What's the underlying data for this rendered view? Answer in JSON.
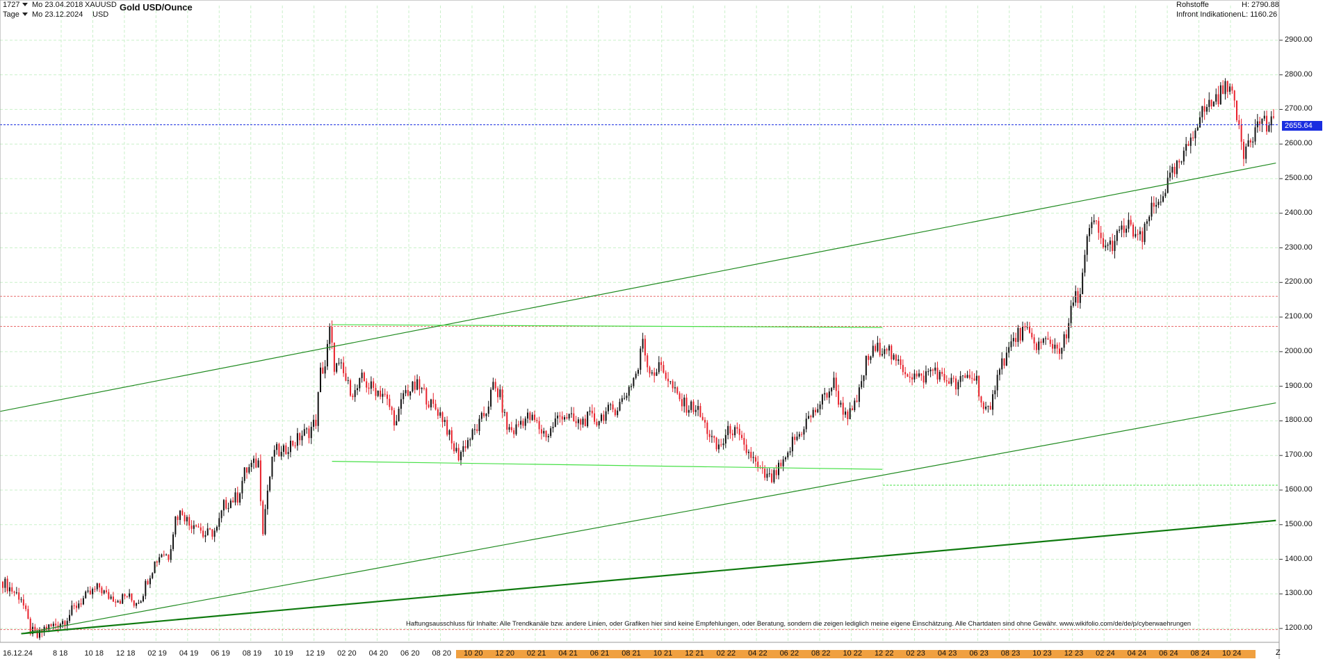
{
  "header": {
    "count": "1727",
    "date_start": "Mo 23.04.2018",
    "symbol": "XAUUSD",
    "timeframe": "Tage",
    "date_end": "Mo 23.12.2024",
    "currency": "USD",
    "title": "Gold USD/Ounce",
    "category": "Rohstoffe",
    "provider": "Infront Indikationen",
    "high_label": "H: 2790.88",
    "low_label": "L: 1160.26"
  },
  "price_tag": "2655.64",
  "disclaimer": "Haftungsausschluss für Inhalte: Alle Trendkanäle bzw. andere Linien, oder Grafiken hier sind keine Empfehlungen, oder Beratung, sondern die zeigen lediglich meine eigene Einschätzung. Alle Chartdaten sind ohne Gewähr.  www.wikifolio.com/de/de/p/cyberwaehrungen",
  "z_label": "Z",
  "colors": {
    "up": "#111111",
    "down": "#e8202a",
    "grid": "#c9f0c9",
    "trend": "#1f8a1f",
    "range": "#45e045",
    "blue_dash": "#1a2ee0",
    "red_dash": "#e86a6a",
    "orange_band": "#f0a040"
  },
  "chart_data": {
    "type": "candlestick",
    "title": "Gold USD/Ounce",
    "ylim": [
      1160,
      2960
    ],
    "y_ticks": [
      "2900.00",
      "2800.00",
      "2700.00",
      "2600.00",
      "2500.00",
      "2400.00",
      "2300.00",
      "2200.00",
      "2100.00",
      "2000.00",
      "1900.00",
      "1800.00",
      "1700.00",
      "1600.00",
      "1500.00",
      "1400.00",
      "1300.00",
      "1200.00"
    ],
    "x_ticks": [
      "16.12.24",
      "8 18",
      "10 18",
      "12 18",
      "02 19",
      "04 19",
      "06 19",
      "08 19",
      "10 19",
      "12 19",
      "02 20",
      "04 20",
      "06 20",
      "08 20",
      "10 20",
      "12 20",
      "02 21",
      "04 21",
      "06 21",
      "08 21",
      "10 21",
      "12 21",
      "02 22",
      "04 22",
      "06 22",
      "08 22",
      "10 22",
      "12 22",
      "02 23",
      "04 23",
      "06 23",
      "08 23",
      "10 23",
      "12 23",
      "02 24",
      "04 24",
      "06 24",
      "08 24",
      "10 24"
    ],
    "last": 2655.64,
    "high": 2790.88,
    "low": 1160.26,
    "path": [
      [
        0,
        1335
      ],
      [
        5,
        1305
      ],
      [
        8,
        1290
      ],
      [
        10,
        1240
      ],
      [
        12,
        1195
      ],
      [
        15,
        1175
      ],
      [
        18,
        1200
      ],
      [
        21,
        1205
      ],
      [
        24,
        1215
      ],
      [
        27,
        1225
      ],
      [
        30,
        1250
      ],
      [
        33,
        1275
      ],
      [
        36,
        1290
      ],
      [
        39,
        1305
      ],
      [
        42,
        1320
      ],
      [
        45,
        1295
      ],
      [
        48,
        1290
      ],
      [
        51,
        1285
      ],
      [
        54,
        1295
      ],
      [
        57,
        1275
      ],
      [
        60,
        1290
      ],
      [
        63,
        1345
      ],
      [
        66,
        1390
      ],
      [
        69,
        1420
      ],
      [
        72,
        1410
      ],
      [
        75,
        1520
      ],
      [
        78,
        1540
      ],
      [
        81,
        1500
      ],
      [
        84,
        1510
      ],
      [
        87,
        1470
      ],
      [
        90,
        1475
      ],
      [
        93,
        1485
      ],
      [
        96,
        1555
      ],
      [
        99,
        1570
      ],
      [
        102,
        1580
      ],
      [
        105,
        1650
      ],
      [
        108,
        1670
      ],
      [
        111,
        1680
      ],
      [
        113,
        1490
      ],
      [
        115,
        1600
      ],
      [
        118,
        1720
      ],
      [
        121,
        1700
      ],
      [
        124,
        1730
      ],
      [
        127,
        1740
      ],
      [
        130,
        1760
      ],
      [
        133,
        1770
      ],
      [
        136,
        1800
      ],
      [
        138,
        1940
      ],
      [
        140,
        1960
      ],
      [
        142,
        2060
      ],
      [
        144,
        1960
      ],
      [
        147,
        1950
      ],
      [
        150,
        1900
      ],
      [
        153,
        1880
      ],
      [
        156,
        1920
      ],
      [
        159,
        1900
      ],
      [
        162,
        1890
      ],
      [
        165,
        1880
      ],
      [
        168,
        1840
      ],
      [
        171,
        1790
      ],
      [
        174,
        1880
      ],
      [
        177,
        1890
      ],
      [
        180,
        1900
      ],
      [
        183,
        1880
      ],
      [
        186,
        1845
      ],
      [
        189,
        1830
      ],
      [
        192,
        1800
      ],
      [
        195,
        1730
      ],
      [
        198,
        1700
      ],
      [
        201,
        1735
      ],
      [
        204,
        1760
      ],
      [
        207,
        1790
      ],
      [
        210,
        1830
      ],
      [
        213,
        1900
      ],
      [
        216,
        1870
      ],
      [
        219,
        1780
      ],
      [
        222,
        1770
      ],
      [
        225,
        1800
      ],
      [
        228,
        1810
      ],
      [
        231,
        1800
      ],
      [
        234,
        1770
      ],
      [
        237,
        1760
      ],
      [
        240,
        1800
      ],
      [
        243,
        1820
      ],
      [
        246,
        1810
      ],
      [
        249,
        1790
      ],
      [
        252,
        1800
      ],
      [
        255,
        1810
      ],
      [
        258,
        1800
      ],
      [
        261,
        1820
      ],
      [
        264,
        1830
      ],
      [
        267,
        1840
      ],
      [
        270,
        1870
      ],
      [
        273,
        1910
      ],
      [
        276,
        1950
      ],
      [
        278,
        2040
      ],
      [
        280,
        1960
      ],
      [
        283,
        1940
      ],
      [
        286,
        1960
      ],
      [
        289,
        1920
      ],
      [
        292,
        1880
      ],
      [
        295,
        1850
      ],
      [
        298,
        1840
      ],
      [
        301,
        1840
      ],
      [
        304,
        1800
      ],
      [
        307,
        1760
      ],
      [
        310,
        1720
      ],
      [
        313,
        1740
      ],
      [
        316,
        1780
      ],
      [
        319,
        1760
      ],
      [
        322,
        1720
      ],
      [
        325,
        1700
      ],
      [
        328,
        1660
      ],
      [
        331,
        1640
      ],
      [
        334,
        1630
      ],
      [
        337,
        1660
      ],
      [
        340,
        1680
      ],
      [
        343,
        1740
      ],
      [
        346,
        1760
      ],
      [
        349,
        1800
      ],
      [
        352,
        1820
      ],
      [
        355,
        1850
      ],
      [
        358,
        1880
      ],
      [
        361,
        1910
      ],
      [
        364,
        1840
      ],
      [
        367,
        1820
      ],
      [
        369,
        1820
      ],
      [
        372,
        1880
      ],
      [
        375,
        1970
      ],
      [
        378,
        2000
      ],
      [
        381,
        2010
      ],
      [
        384,
        2020
      ],
      [
        387,
        1970
      ],
      [
        390,
        1960
      ],
      [
        393,
        1940
      ],
      [
        396,
        1930
      ],
      [
        399,
        1920
      ],
      [
        402,
        1940
      ],
      [
        405,
        1950
      ],
      [
        408,
        1920
      ],
      [
        411,
        1920
      ],
      [
        414,
        1900
      ],
      [
        417,
        1920
      ],
      [
        420,
        1930
      ],
      [
        423,
        1920
      ],
      [
        426,
        1830
      ],
      [
        429,
        1820
      ],
      [
        432,
        1950
      ],
      [
        435,
        1980
      ],
      [
        438,
        2020
      ],
      [
        441,
        2050
      ],
      [
        444,
        2060
      ],
      [
        447,
        2030
      ],
      [
        450,
        2020
      ],
      [
        453,
        2030
      ],
      [
        456,
        2020
      ],
      [
        459,
        2010
      ],
      [
        462,
        2040
      ],
      [
        465,
        2150
      ],
      [
        468,
        2170
      ],
      [
        471,
        2320
      ],
      [
        474,
        2380
      ],
      [
        477,
        2320
      ],
      [
        480,
        2300
      ],
      [
        483,
        2320
      ],
      [
        486,
        2350
      ],
      [
        489,
        2360
      ],
      [
        492,
        2340
      ],
      [
        495,
        2320
      ],
      [
        498,
        2400
      ],
      [
        501,
        2420
      ],
      [
        504,
        2460
      ],
      [
        507,
        2500
      ],
      [
        510,
        2530
      ],
      [
        513,
        2560
      ],
      [
        516,
        2620
      ],
      [
        519,
        2670
      ],
      [
        522,
        2700
      ],
      [
        525,
        2720
      ],
      [
        528,
        2740
      ],
      [
        531,
        2760
      ],
      [
        533,
        2790
      ],
      [
        535,
        2700
      ],
      [
        537,
        2650
      ],
      [
        539,
        2580
      ],
      [
        541,
        2620
      ],
      [
        544,
        2640
      ],
      [
        547,
        2680
      ],
      [
        549,
        2650
      ],
      [
        552,
        2655.64
      ]
    ]
  }
}
